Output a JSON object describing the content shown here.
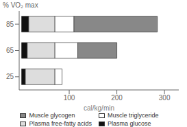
{
  "chart_data": {
    "type": "bar",
    "orientation": "horizontal",
    "stacked": true,
    "xlabel": "cal/kg/min",
    "ylabel": "% VO₂ max",
    "categories": [
      "25",
      "65",
      "85"
    ],
    "series": [
      {
        "name": "Plasma glucose",
        "color": "#111111",
        "values": [
          8,
          12,
          15
        ]
      },
      {
        "name": "Plasma free-fatty acids",
        "color": "#dddddd",
        "values": [
          62,
          58,
          55
        ]
      },
      {
        "name": "Muscle triglyceride",
        "color": "#ffffff",
        "values": [
          15,
          48,
          40
        ]
      },
      {
        "name": "Muscle glycogen",
        "color": "#888888",
        "values": [
          0,
          82,
          175
        ]
      }
    ],
    "xlim": [
      -5,
      330
    ],
    "xticks": [
      100,
      200,
      300
    ],
    "grid": false
  }
}
